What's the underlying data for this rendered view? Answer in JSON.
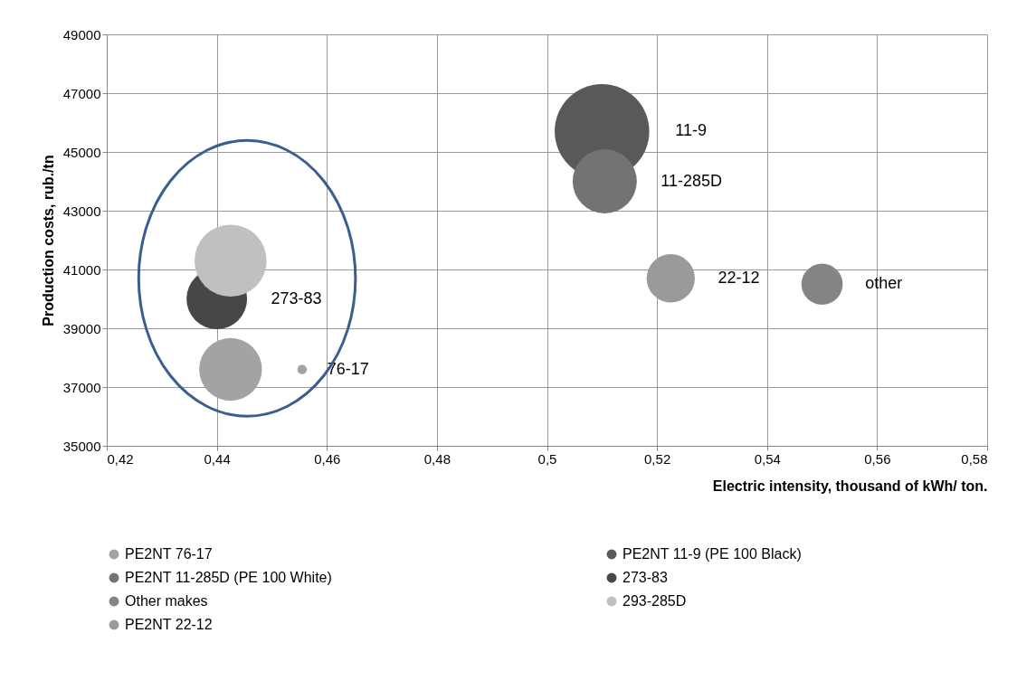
{
  "chart_data": {
    "type": "bubble",
    "xlabel": "Electric intensity, thousand of kWh/ ton.",
    "ylabel": "Production costs, rub./tn",
    "xlim": [
      0.42,
      0.58
    ],
    "xticks": [
      {
        "value": 0.42,
        "label": "0,42"
      },
      {
        "value": 0.44,
        "label": "0,44"
      },
      {
        "value": 0.46,
        "label": "0,46"
      },
      {
        "value": 0.48,
        "label": "0,48"
      },
      {
        "value": 0.5,
        "label": "0,5"
      },
      {
        "value": 0.52,
        "label": "0,52"
      },
      {
        "value": 0.54,
        "label": "0,54"
      },
      {
        "value": 0.56,
        "label": "0,56"
      },
      {
        "value": 0.58,
        "label": "0,58"
      }
    ],
    "ylim": [
      35000,
      49000
    ],
    "yticks": [
      35000,
      37000,
      39000,
      41000,
      43000,
      45000,
      47000,
      49000
    ],
    "grid": true,
    "legend": "bottom",
    "series": [
      {
        "name": "PE2NT 76-17",
        "color": "#a3a3a3",
        "x": [
          0.4555,
          0.4425
        ],
        "values": [
          37600,
          37600
        ],
        "sizes": [
          0.01,
          0.44
        ],
        "value_labels": [
          "76-17",
          null
        ]
      },
      {
        "name": "PE2NT 11-9 (PE 100 Black)",
        "color": "#595959",
        "x": [
          0.51
        ],
        "values": [
          45700
        ],
        "sizes": [
          1
        ],
        "value_labels": [
          "11-9"
        ]
      },
      {
        "name": "PE2NT 11-285D (PE 100 White)",
        "color": "#737373",
        "x": [
          0.5105
        ],
        "values": [
          44000
        ],
        "sizes": [
          0.46
        ],
        "value_labels": [
          "11-285D"
        ]
      },
      {
        "name": "273-83",
        "color": "#474747",
        "x": [
          0.44
        ],
        "values": [
          40000
        ],
        "sizes": [
          0.41
        ],
        "value_labels": [
          "273-83"
        ]
      },
      {
        "name": "Other makes",
        "color": "#858585",
        "x": [
          0.55
        ],
        "values": [
          40500
        ],
        "sizes": [
          0.19
        ],
        "value_labels": [
          "other"
        ]
      },
      {
        "name": "293-285D",
        "color": "#c0c0c0",
        "x": [
          0.4425
        ],
        "values": [
          41300
        ],
        "sizes": [
          0.58
        ]
      },
      {
        "name": "PE2NT 22-12",
        "color": "#9a9a9a",
        "x": [
          0.5225
        ],
        "values": [
          40700
        ],
        "sizes": [
          0.26
        ],
        "value_labels": [
          "22-12"
        ]
      }
    ]
  }
}
